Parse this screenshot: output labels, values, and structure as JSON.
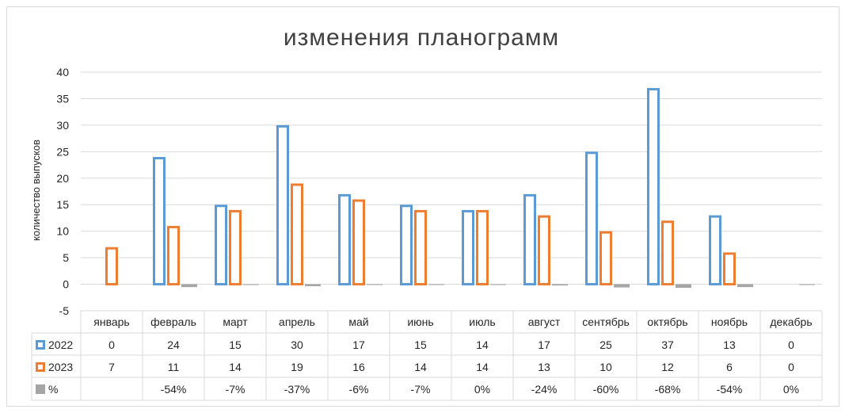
{
  "chart_data": {
    "type": "bar",
    "title": "изменения планограмм",
    "ylabel": "количество выпусков",
    "xlabel": "",
    "ylim": [
      -5,
      40
    ],
    "yticks": [
      -5,
      0,
      5,
      10,
      15,
      20,
      25,
      30,
      35,
      40
    ],
    "grid": true,
    "categories": [
      "январь",
      "февраль",
      "март",
      "апрель",
      "май",
      "июнь",
      "июль",
      "август",
      "сентябрь",
      "октябрь",
      "ноябрь",
      "декабрь"
    ],
    "series": [
      {
        "name": "2022",
        "color": "#5b9bd5",
        "style": "outline",
        "values": [
          0,
          24,
          15,
          30,
          17,
          15,
          14,
          17,
          25,
          37,
          13,
          0
        ]
      },
      {
        "name": "2023",
        "color": "#ed7d31",
        "style": "outline",
        "values": [
          7,
          11,
          14,
          19,
          16,
          14,
          14,
          13,
          10,
          12,
          6,
          0
        ]
      },
      {
        "name": "%",
        "color": "#a5a5a5",
        "style": "filled",
        "values": [
          null,
          -0.54,
          -0.07,
          -0.37,
          -0.06,
          -0.07,
          0,
          -0.24,
          -0.6,
          -0.68,
          -0.54,
          0
        ]
      }
    ],
    "table_labels": {
      "2022": [
        "0",
        "24",
        "15",
        "30",
        "17",
        "15",
        "14",
        "17",
        "25",
        "37",
        "13",
        "0"
      ],
      "2023": [
        "7",
        "11",
        "14",
        "19",
        "16",
        "14",
        "14",
        "13",
        "10",
        "12",
        "6",
        "0"
      ],
      "%": [
        "",
        "-54%",
        "-7%",
        "-37%",
        "-6%",
        "-7%",
        "0%",
        "-24%",
        "-60%",
        "-68%",
        "-54%",
        "0%"
      ]
    }
  }
}
